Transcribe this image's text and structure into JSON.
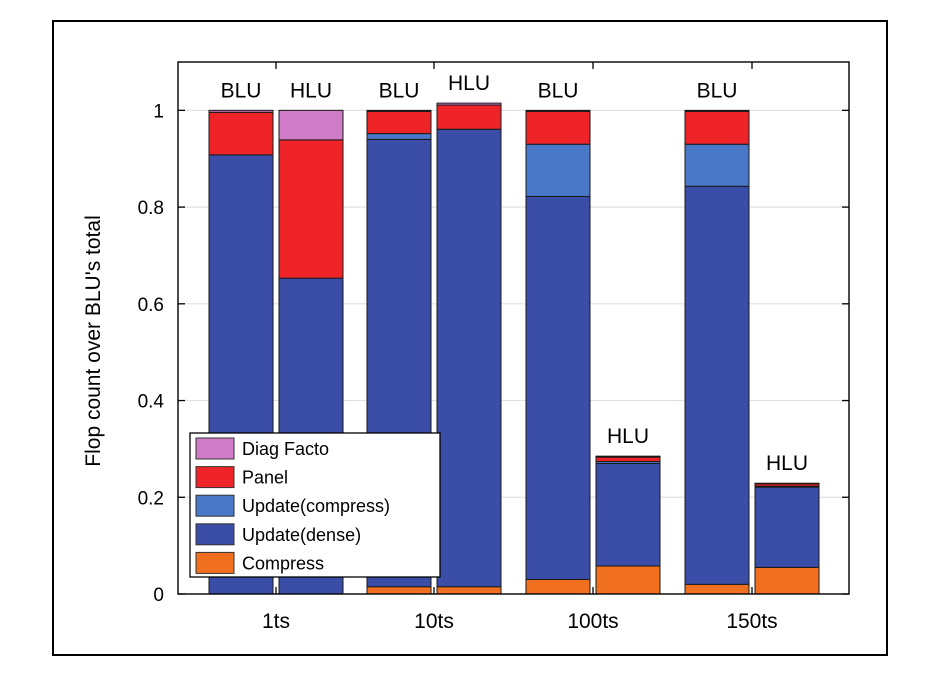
{
  "chart_data": {
    "type": "bar",
    "stacked": true,
    "ylabel": "Flop count over BLU's total",
    "xlabel": "",
    "ylim": [
      0,
      1.1
    ],
    "yticks": [
      0,
      0.2,
      0.4,
      0.6,
      0.8,
      1
    ],
    "ytick_labels": [
      "0",
      "0.2",
      "0.4",
      "0.6",
      "0.8",
      "1"
    ],
    "grid": true,
    "legend_position": "bottom-left",
    "groups": [
      "1ts",
      "10ts",
      "100ts",
      "150ts"
    ],
    "series_order": [
      "Compress",
      "Update(dense)",
      "Update(compress)",
      "Panel",
      "Diag Facto"
    ],
    "series_colors": {
      "Compress": "#f07020",
      "Update(dense)": "#3a4ea8",
      "Update(compress)": "#4a78c8",
      "Panel": "#ee2428",
      "Diag Facto": "#d07cc8"
    },
    "bars": [
      {
        "group": "1ts",
        "label": "BLU",
        "values": {
          "Compress": 0.0,
          "Update(dense)": 0.908,
          "Update(compress)": 0.0,
          "Panel": 0.088,
          "Diag Facto": 0.004
        }
      },
      {
        "group": "1ts",
        "label": "HLU",
        "values": {
          "Compress": 0.0,
          "Update(dense)": 0.653,
          "Update(compress)": 0.0,
          "Panel": 0.286,
          "Diag Facto": 0.061
        }
      },
      {
        "group": "10ts",
        "label": "BLU",
        "values": {
          "Compress": 0.015,
          "Update(dense)": 0.925,
          "Update(compress)": 0.012,
          "Panel": 0.046,
          "Diag Facto": 0.002
        }
      },
      {
        "group": "10ts",
        "label": "HLU",
        "values": {
          "Compress": 0.015,
          "Update(dense)": 0.946,
          "Update(compress)": 0.0,
          "Panel": 0.05,
          "Diag Facto": 0.004
        }
      },
      {
        "group": "100ts",
        "label": "BLU",
        "values": {
          "Compress": 0.03,
          "Update(dense)": 0.792,
          "Update(compress)": 0.108,
          "Panel": 0.068,
          "Diag Facto": 0.002
        }
      },
      {
        "group": "100ts",
        "label": "HLU",
        "values": {
          "Compress": 0.058,
          "Update(dense)": 0.212,
          "Update(compress)": 0.004,
          "Panel": 0.009,
          "Diag Facto": 0.002
        }
      },
      {
        "group": "150ts",
        "label": "BLU",
        "values": {
          "Compress": 0.02,
          "Update(dense)": 0.823,
          "Update(compress)": 0.087,
          "Panel": 0.068,
          "Diag Facto": 0.002
        }
      },
      {
        "group": "150ts",
        "label": "HLU",
        "values": {
          "Compress": 0.055,
          "Update(dense)": 0.166,
          "Update(compress)": 0.002,
          "Panel": 0.005,
          "Diag Facto": 0.001
        }
      }
    ],
    "legend": [
      "Diag Facto",
      "Panel",
      "Update(compress)",
      "Update(dense)",
      "Compress"
    ]
  }
}
